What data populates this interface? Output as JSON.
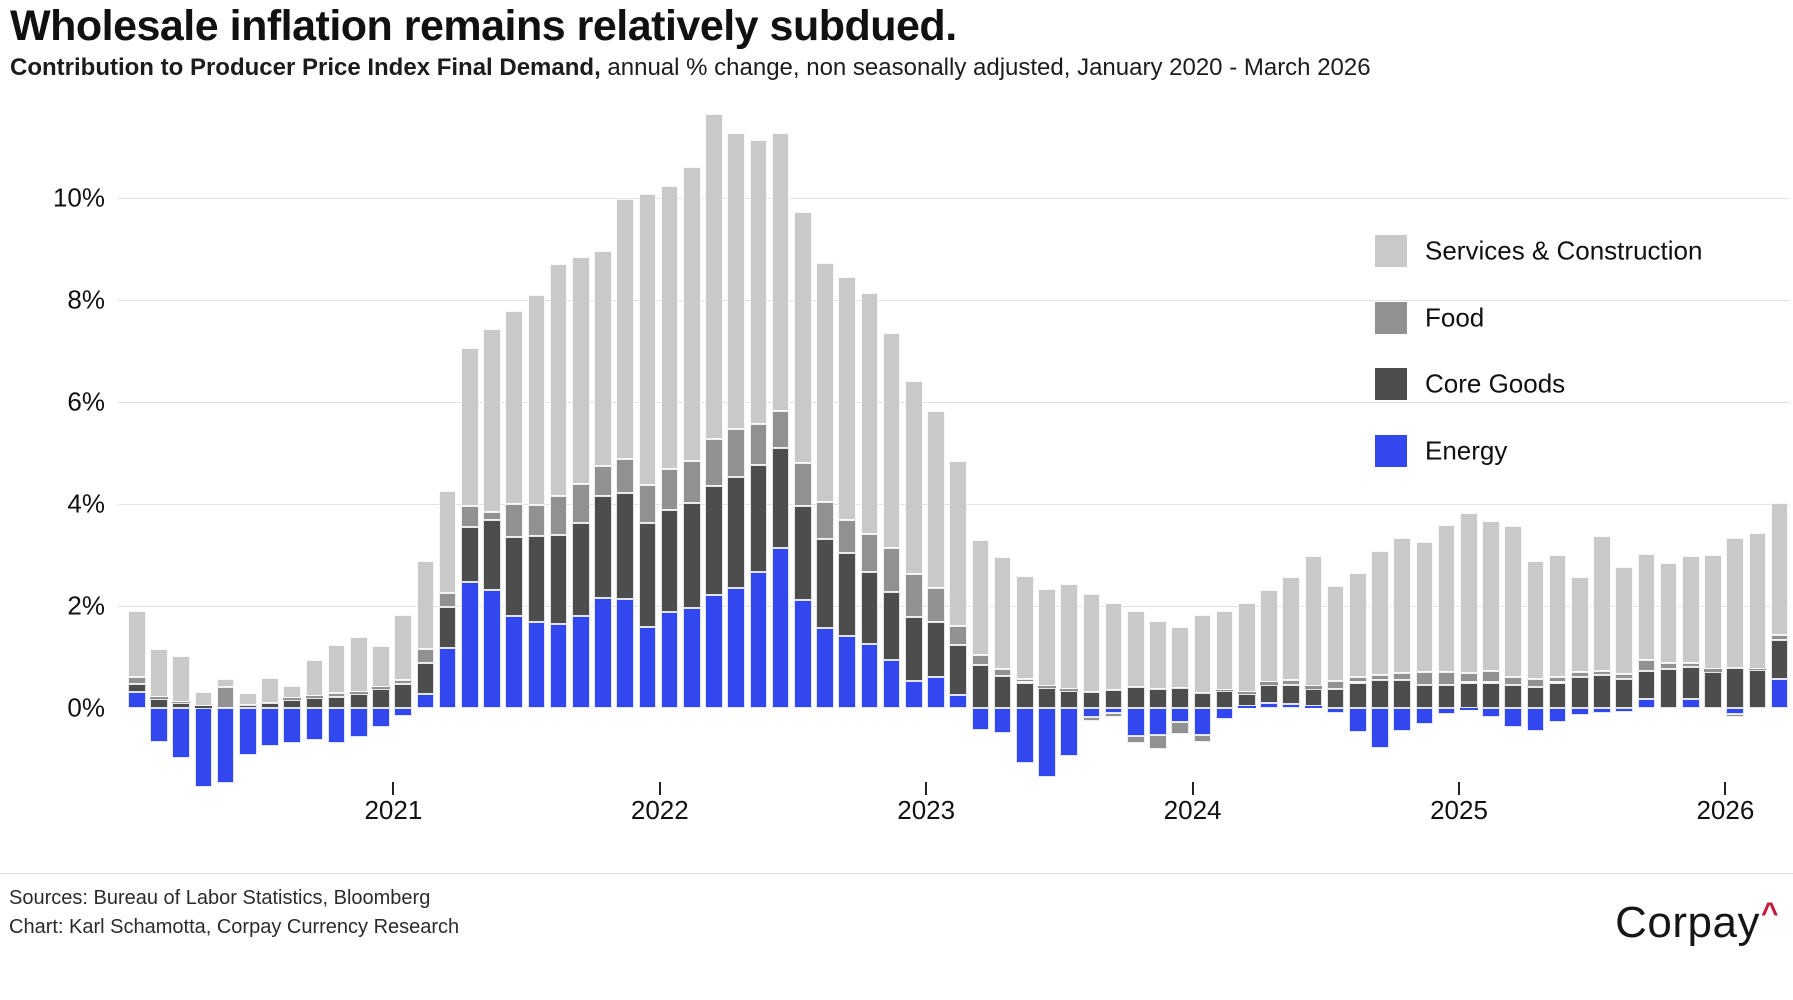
{
  "header": {
    "title": "Wholesale inflation remains relatively subdued.",
    "subtitle_bold": "Contribution to Producer Price Index Final Demand,",
    "subtitle_rest": " annual % change, non seasonally adjusted, January 2020 - March 2026"
  },
  "legend": {
    "items": [
      {
        "label": "Services & Construction",
        "series": "Services & Construction"
      },
      {
        "label": "Food",
        "series": "Food"
      },
      {
        "label": "Core Goods",
        "series": "Core Goods"
      },
      {
        "label": "Energy",
        "series": "Energy"
      }
    ]
  },
  "chart_data": {
    "type": "bar",
    "stacked": true,
    "x_start": "2020-01",
    "x_end": "2026-03",
    "n_months": 75,
    "ylabel": "annual % change contribution",
    "ylim": [
      -2,
      12
    ],
    "grid": true,
    "legend_position": "upper right",
    "y_axis": {
      "ticks": [
        {
          "label": "0%",
          "value": 0
        },
        {
          "label": "2%",
          "value": 2
        },
        {
          "label": "4%",
          "value": 4
        },
        {
          "label": "6%",
          "value": 6
        },
        {
          "label": "8%",
          "value": 8
        },
        {
          "label": "10%",
          "value": 10
        }
      ]
    },
    "x_axis": {
      "ticks": [
        {
          "label": "2021",
          "month": 12
        },
        {
          "label": "2022",
          "month": 24
        },
        {
          "label": "2023",
          "month": 36
        },
        {
          "label": "2024",
          "month": 48
        },
        {
          "label": "2025",
          "month": 60
        },
        {
          "label": "2026",
          "month": 72
        }
      ]
    },
    "series": [
      {
        "name": "Energy",
        "color": "#3247ed",
        "values": [
          0.32,
          -0.67,
          -0.98,
          -1.55,
          -1.47,
          -0.92,
          -0.74,
          -0.69,
          -0.63,
          -0.68,
          -0.57,
          -0.38,
          -0.15,
          0.28,
          1.18,
          2.47,
          2.31,
          1.8,
          1.69,
          1.65,
          1.81,
          2.15,
          2.13,
          1.58,
          1.88,
          1.96,
          2.22,
          2.35,
          2.67,
          3.14,
          2.12,
          1.57,
          1.41,
          1.25,
          0.94,
          0.53,
          0.61,
          0.25,
          -0.43,
          -0.49,
          -1.08,
          -1.36,
          -0.94,
          -0.18,
          -0.09,
          -0.55,
          -0.53,
          -0.27,
          -0.53,
          -0.22,
          0.04,
          0.09,
          0.07,
          0.03,
          -0.1,
          -0.47,
          -0.78,
          -0.45,
          -0.31,
          -0.12,
          -0.03,
          -0.17,
          -0.37,
          -0.46,
          -0.28,
          -0.13,
          -0.1,
          -0.08,
          0.18,
          0,
          0.17,
          0,
          -0.12,
          0,
          0.56
        ]
      },
      {
        "name": "Core Goods",
        "color": "#4d4d4d",
        "values": [
          0.16,
          0.18,
          0.09,
          0.04,
          0,
          0.06,
          0.09,
          0.16,
          0.19,
          0.22,
          0.27,
          0.37,
          0.48,
          0.6,
          0.8,
          1.08,
          1.38,
          1.56,
          1.69,
          1.75,
          1.81,
          2,
          2.09,
          2.05,
          2.01,
          2.06,
          2.13,
          2.18,
          2.09,
          1.96,
          1.84,
          1.74,
          1.63,
          1.42,
          1.33,
          1.25,
          1.08,
          0.99,
          0.84,
          0.62,
          0.5,
          0.39,
          0.34,
          0.32,
          0.36,
          0.41,
          0.37,
          0.39,
          0.29,
          0.33,
          0.24,
          0.37,
          0.39,
          0.35,
          0.37,
          0.5,
          0.54,
          0.55,
          0.45,
          0.45,
          0.5,
          0.5,
          0.45,
          0.42,
          0.5,
          0.6,
          0.65,
          0.57,
          0.55,
          0.76,
          0.64,
          0.71,
          0.78,
          0.75,
          0.78
        ]
      },
      {
        "name": "Food",
        "color": "#919191",
        "values": [
          0.13,
          0.03,
          0.03,
          0,
          0.41,
          0,
          0,
          0.03,
          0.05,
          0.08,
          0.05,
          0.04,
          0.07,
          0.27,
          0.27,
          0.41,
          0.15,
          0.64,
          0.6,
          0.76,
          0.77,
          0.59,
          0.67,
          0.75,
          0.8,
          0.82,
          0.92,
          0.94,
          0.81,
          0.72,
          0.84,
          0.73,
          0.65,
          0.74,
          0.87,
          0.85,
          0.66,
          0.37,
          0.2,
          0.15,
          0.07,
          0.05,
          0.04,
          -0.08,
          -0.08,
          -0.14,
          -0.27,
          -0.24,
          -0.14,
          0.02,
          0.04,
          0.05,
          0.08,
          0.05,
          0.16,
          0.1,
          0.11,
          0.13,
          0.25,
          0.25,
          0.18,
          0.22,
          0.15,
          0.15,
          0.1,
          0.1,
          0.08,
          0.1,
          0.22,
          0.12,
          0.08,
          0.05,
          -0.06,
          0.02,
          0.09
        ]
      },
      {
        "name": "Services & Construction",
        "color": "#c9c9c9",
        "values": [
          1.29,
          0.95,
          0.9,
          0.28,
          0.16,
          0.24,
          0.49,
          0.24,
          0.7,
          0.94,
          1.07,
          0.8,
          1.27,
          1.73,
          2.01,
          3.1,
          3.6,
          3.78,
          4.11,
          4.55,
          4.45,
          4.22,
          5.09,
          5.7,
          5.55,
          5.77,
          6.38,
          5.8,
          5.57,
          5.45,
          4.93,
          4.69,
          4.76,
          4.73,
          4.21,
          3.78,
          3.47,
          3.23,
          2.26,
          2.19,
          2.01,
          1.89,
          2.05,
          1.92,
          1.7,
          1.49,
          1.34,
          1.2,
          1.53,
          1.55,
          1.74,
          1.8,
          2.03,
          2.55,
          1.87,
          2.05,
          2.43,
          2.65,
          2.55,
          2.89,
          3.15,
          2.95,
          2.97,
          2.31,
          2.4,
          1.87,
          2.64,
          2.1,
          2.07,
          1.96,
          2.09,
          2.24,
          2.55,
          2.66,
          2.59
        ]
      }
    ]
  },
  "footer": {
    "sources_line": "Sources: Bureau of Labor Statistics, Bloomberg",
    "chart_line": "Chart: Karl Schamotta, Corpay Currency Research",
    "logo_text": "Corpay",
    "logo_caret": "^",
    "logo_caret_color": "#c31a3e",
    "divider_color": "#d9d9d9"
  }
}
